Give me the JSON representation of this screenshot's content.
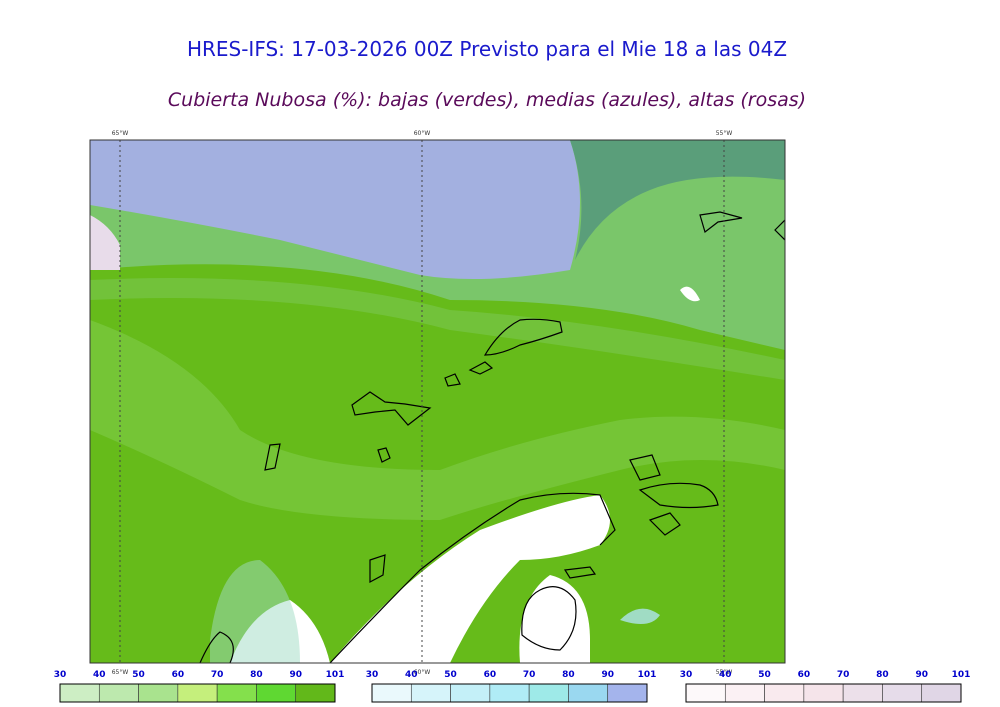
{
  "title": "HRES-IFS: 17-03-2026 00Z Previsto para el Mie 18 a las 04Z",
  "subtitle": "Cubierta Nubosa (%): bajas (verdes), medias (azules), altas (rosas)",
  "map": {
    "longitudes_top": [
      "65°W",
      "60°W",
      "55°W"
    ],
    "longitudes_bottom": [
      "65°W",
      "60°W",
      "55°W"
    ]
  },
  "legends": [
    {
      "labels": [
        "30",
        "40",
        "50",
        "60",
        "70",
        "80",
        "90",
        "101"
      ],
      "colors": [
        "#cdeec4",
        "#bde9ae",
        "#a9e38e",
        "#c5ef7c",
        "#84e04c",
        "#5fd832",
        "#62b81a"
      ]
    },
    {
      "labels": [
        "30",
        "40",
        "50",
        "60",
        "70",
        "80",
        "90",
        "101"
      ],
      "colors": [
        "#eaf9fc",
        "#d6f4fa",
        "#c4f0f8",
        "#b0ecf6",
        "#9eeae8",
        "#9ad8f0",
        "#a4b4ec"
      ]
    },
    {
      "labels": [
        "30",
        "40",
        "50",
        "60",
        "70",
        "80",
        "90",
        "101"
      ],
      "colors": [
        "#fdf9fa",
        "#fbf1f4",
        "#f9eaee",
        "#f5e4ea",
        "#ece0ea",
        "#e6dcea",
        "#e0d6e6"
      ]
    }
  ]
}
